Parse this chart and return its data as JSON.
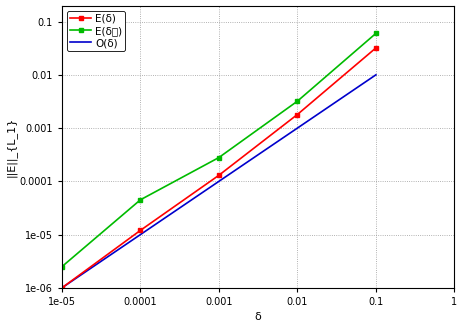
{
  "xlabel": "δ",
  "ylabel": "||E||_{L_1}",
  "xlim": [
    1e-05,
    1
  ],
  "ylim": [
    1e-06,
    0.2
  ],
  "x_data": [
    1e-05,
    0.0001,
    0.001,
    0.01,
    0.1
  ],
  "red_y": [
    1e-06,
    1.2e-05,
    0.00013,
    0.0018,
    0.032
  ],
  "green_y": [
    2.5e-06,
    4.5e-05,
    0.00028,
    0.0032,
    0.06
  ],
  "blue_y": [
    1e-06,
    1e-05,
    0.0001,
    0.001,
    0.01
  ],
  "red_color": "#ff0000",
  "green_color": "#00bb00",
  "blue_color": "#0000cc",
  "marker_green": "s",
  "marker_red": "s",
  "markersize": 3,
  "linewidth": 1.2,
  "grid_color": "#999999",
  "bg_color": "#ffffff",
  "fig_bg": "#ffffff",
  "xticks": [
    1e-05,
    0.0001,
    0.001,
    0.01,
    0.1,
    1
  ],
  "yticks": [
    1e-06,
    1e-05,
    0.0001,
    0.001,
    0.01,
    0.1
  ],
  "legend_loc": "upper left"
}
